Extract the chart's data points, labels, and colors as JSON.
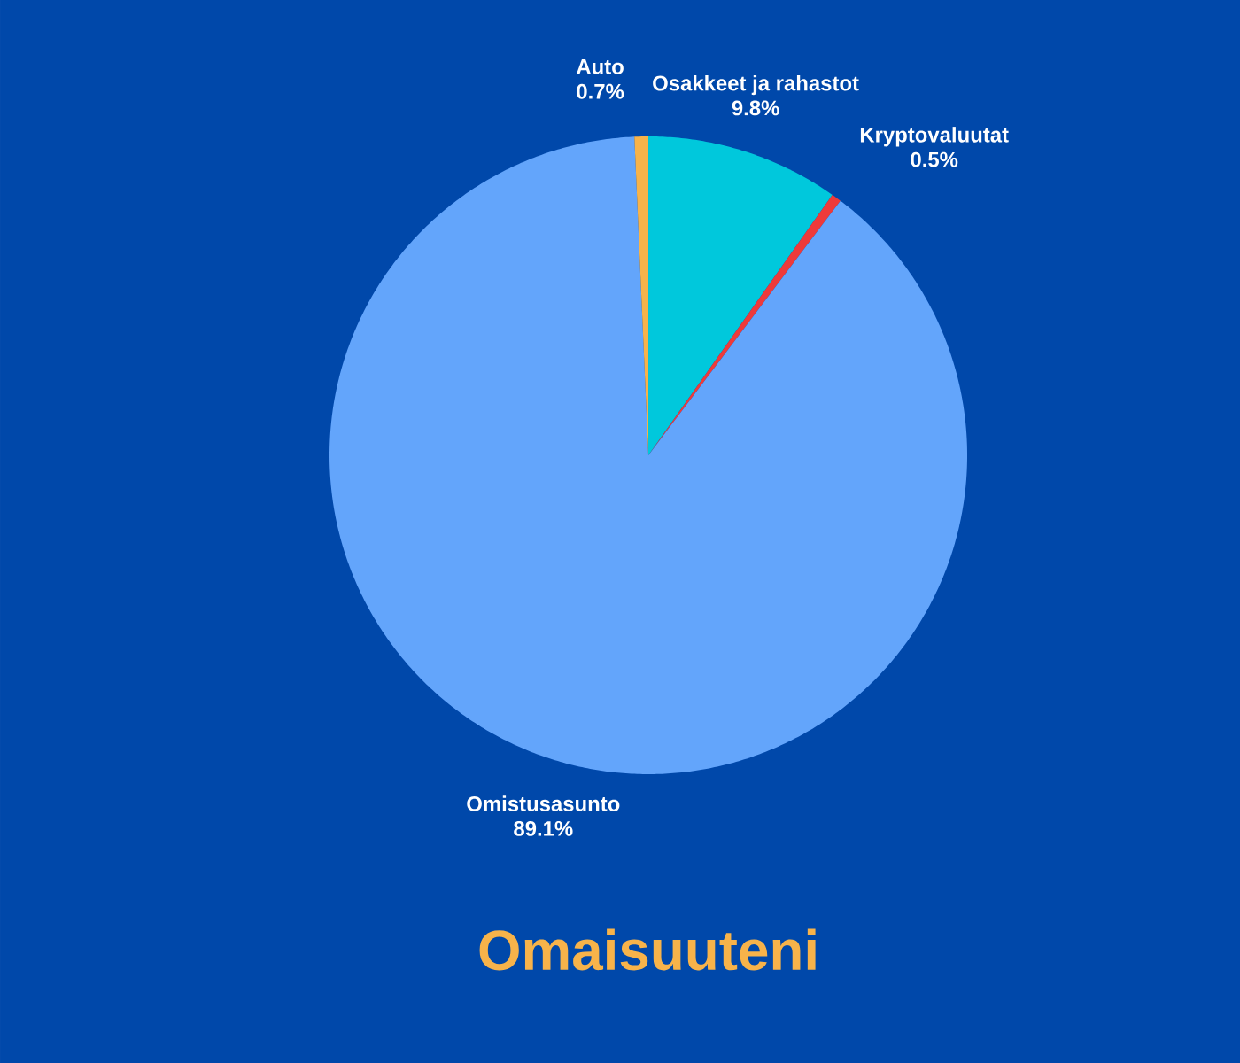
{
  "chart_data": {
    "type": "pie",
    "title": "Omaisuuteni",
    "categories": [
      "Osakkeet ja rahastot",
      "Kryptovaluutat",
      "Omistusasunto",
      "Auto"
    ],
    "values": [
      9.8,
      0.5,
      89.1,
      0.7
    ],
    "value_labels": [
      "9.8%",
      "0.5%",
      "89.1%",
      "0.7%"
    ],
    "colors": [
      "#00c8dc",
      "#ee3a3a",
      "#63a5fb",
      "#f7b34a"
    ]
  }
}
